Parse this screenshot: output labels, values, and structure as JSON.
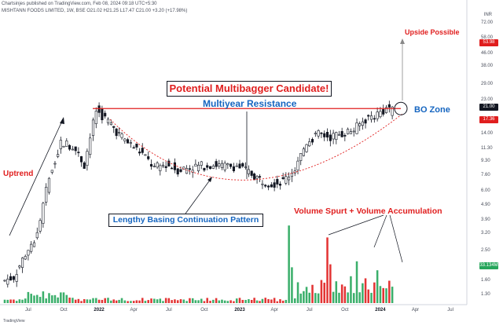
{
  "header": {
    "line1": "Chartsinjes published on TradingView.com, Feb 08, 2024 09:18 UTC+5:30",
    "line2": "MISHTANN FOODS LIMITED, 1W, BSE O21.02 H21.25 L17.47 C21.00 +3.20 (+17.98%)"
  },
  "currency": "INR",
  "price_scale": [
    "72.00",
    "58.00",
    "46.00",
    "38.00",
    "29.00",
    "23.00",
    "17.20",
    "14.00",
    "11.30",
    "9.30",
    "7.60",
    "6.00",
    "4.90",
    "3.90",
    "3.20",
    "2.50",
    "2.00",
    "1.60",
    "1.30"
  ],
  "price_tags": [
    {
      "label": "53.98",
      "color": "#e01e1e"
    },
    {
      "label": "21.00",
      "color": "#131722"
    },
    {
      "label": "17.36",
      "color": "#e01e1e"
    },
    {
      "label": "33.134M",
      "color": "#26a65b"
    }
  ],
  "x_labels": [
    {
      "label": "Jul",
      "bold": false
    },
    {
      "label": "Oct",
      "bold": false
    },
    {
      "label": "2022",
      "bold": true
    },
    {
      "label": "Apr",
      "bold": false
    },
    {
      "label": "Jul",
      "bold": false
    },
    {
      "label": "Oct",
      "bold": false
    },
    {
      "label": "2023",
      "bold": true
    },
    {
      "label": "Apr",
      "bold": false
    },
    {
      "label": "Jul",
      "bold": false
    },
    {
      "label": "Oct",
      "bold": false
    },
    {
      "label": "2024",
      "bold": true
    },
    {
      "label": "Apr",
      "bold": false
    },
    {
      "label": "Jul",
      "bold": false
    }
  ],
  "annotations": {
    "title": "Potential Multibagger Candidate!",
    "resistance": "Multiyear Resistance",
    "bo_zone": "BO Zone",
    "upside": "Upside Possible",
    "uptrend": "Uptrend",
    "basing": "Lengthy Basing Continuation Pattern",
    "volume": "Volume Spurt + Volume Accumulation"
  },
  "branding": "TradingView",
  "colors": {
    "up": "#26a65b",
    "down": "#e01e1e",
    "candle": "#131722",
    "resistance": "#e01e1e",
    "arrow": "#131722"
  },
  "chart_data": {
    "type": "candlestick",
    "symbol": "MISHTANN FOODS LIMITED",
    "interval": "1W",
    "exchange": "BSE",
    "scale": "log",
    "last_close": 21.0,
    "resistance_level": 20.5,
    "weekly_close_path": [
      {
        "date": "2021-05",
        "close": 1.6
      },
      {
        "date": "2021-06",
        "close": 1.7
      },
      {
        "date": "2021-07",
        "close": 2.4
      },
      {
        "date": "2021-08",
        "close": 3.2
      },
      {
        "date": "2021-09",
        "close": 7.5
      },
      {
        "date": "2021-10",
        "close": 12.5
      },
      {
        "date": "2021-11",
        "close": 11.8
      },
      {
        "date": "2021-12",
        "close": 9.0
      },
      {
        "date": "2022-01",
        "close": 20.0
      },
      {
        "date": "2022-02",
        "close": 17.0
      },
      {
        "date": "2022-03",
        "close": 14.0
      },
      {
        "date": "2022-04",
        "close": 12.0
      },
      {
        "date": "2022-05",
        "close": 10.5
      },
      {
        "date": "2022-06",
        "close": 8.5
      },
      {
        "date": "2022-07",
        "close": 9.0
      },
      {
        "date": "2022-08",
        "close": 8.3
      },
      {
        "date": "2022-09",
        "close": 8.6
      },
      {
        "date": "2022-10",
        "close": 8.8
      },
      {
        "date": "2022-11",
        "close": 9.0
      },
      {
        "date": "2022-12",
        "close": 8.7
      },
      {
        "date": "2023-01",
        "close": 8.8
      },
      {
        "date": "2023-02",
        "close": 8.0
      },
      {
        "date": "2023-03",
        "close": 7.2
      },
      {
        "date": "2023-04",
        "close": 6.8
      },
      {
        "date": "2023-05",
        "close": 7.0
      },
      {
        "date": "2023-06",
        "close": 8.5
      },
      {
        "date": "2023-07",
        "close": 12.5
      },
      {
        "date": "2023-08",
        "close": 14.0
      },
      {
        "date": "2023-09",
        "close": 13.5
      },
      {
        "date": "2023-10",
        "close": 14.2
      },
      {
        "date": "2023-11",
        "close": 15.0
      },
      {
        "date": "2023-12",
        "close": 17.5
      },
      {
        "date": "2024-01",
        "close": 19.0
      },
      {
        "date": "2024-02",
        "close": 21.0
      }
    ]
  }
}
